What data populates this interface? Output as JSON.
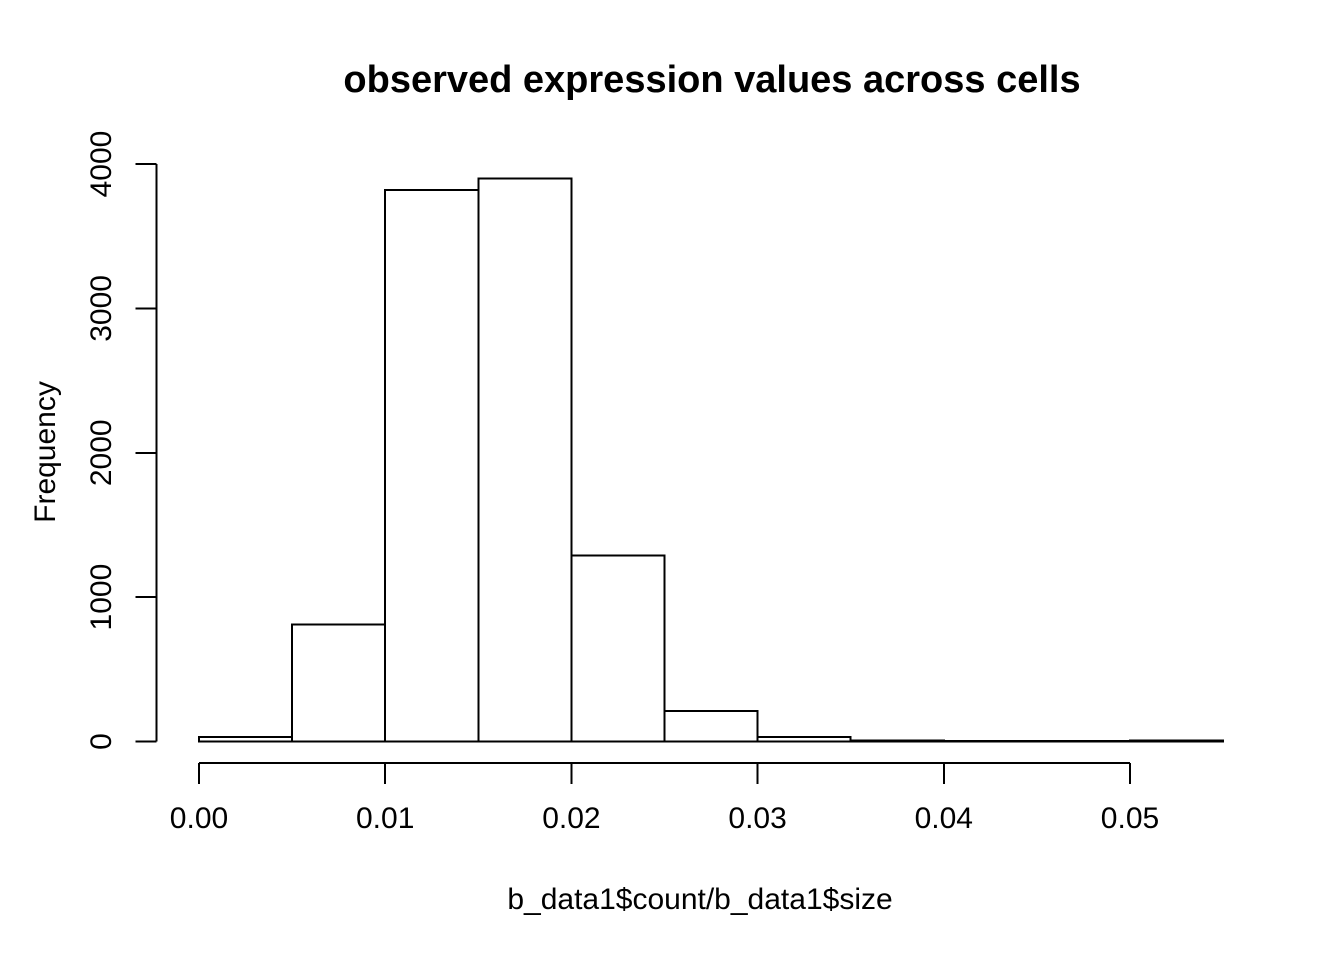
{
  "chart_data": {
    "type": "bar",
    "subtype": "histogram",
    "title": "observed expression values across cells",
    "xlabel": "b_data1$count/b_data1$size",
    "ylabel": "Frequency",
    "xlim": [
      0,
      0.055
    ],
    "ylim": [
      0,
      4000
    ],
    "grid": "off",
    "legend": "none",
    "bin_width": 0.005,
    "bins": [
      {
        "x0": 0.0,
        "x1": 0.005,
        "count": 30
      },
      {
        "x0": 0.005,
        "x1": 0.01,
        "count": 810
      },
      {
        "x0": 0.01,
        "x1": 0.015,
        "count": 3820
      },
      {
        "x0": 0.015,
        "x1": 0.02,
        "count": 3900
      },
      {
        "x0": 0.02,
        "x1": 0.025,
        "count": 1290
      },
      {
        "x0": 0.025,
        "x1": 0.03,
        "count": 210
      },
      {
        "x0": 0.03,
        "x1": 0.035,
        "count": 30
      },
      {
        "x0": 0.035,
        "x1": 0.04,
        "count": 8
      },
      {
        "x0": 0.04,
        "x1": 0.045,
        "count": 5
      },
      {
        "x0": 0.045,
        "x1": 0.05,
        "count": 4
      },
      {
        "x0": 0.05,
        "x1": 0.055,
        "count": 6
      }
    ],
    "x_ticks": {
      "values": [
        0,
        0.01,
        0.02,
        0.03,
        0.04,
        0.05
      ],
      "labels": [
        "0.00",
        "0.01",
        "0.02",
        "0.03",
        "0.04",
        "0.05"
      ]
    },
    "y_ticks": {
      "values": [
        0,
        1000,
        2000,
        3000,
        4000
      ],
      "labels": [
        "0",
        "1000",
        "2000",
        "3000",
        "4000"
      ]
    },
    "colors": {
      "background": "#ffffff",
      "bar_fill": "#ffffff",
      "bar_border": "#000000",
      "axis": "#000000",
      "text": "#000000"
    }
  }
}
